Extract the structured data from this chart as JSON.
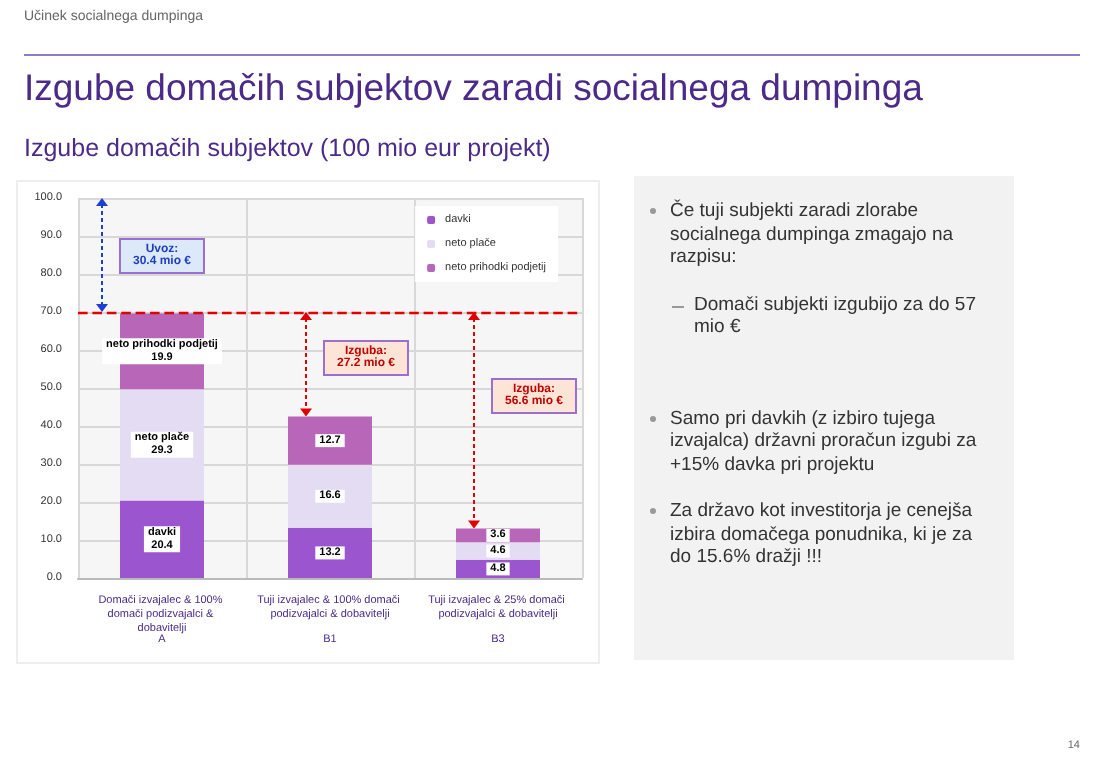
{
  "chart_data": [
    {
      "type": "bar",
      "title": "Izgube domačih subjektov zaradi socialnega dumpinga",
      "subtitle": "Izgube domačih subjektov (100 mio eur projekt)",
      "categories": [
        "Domači izvajalec & 100% domači podizvajalci & dobavitelji",
        "Tuji izvajalec & 100% domači podizvajalci & dobavitelji",
        "Tuji izvajalec & 25% domači podizvajalci & dobavitelji"
      ],
      "series": [
        {
          "name": "davki",
          "color": "#9b55cf",
          "values": [
            20.4,
            13.2,
            4.8
          ],
          "value_labels": [
            "davki\n20.4",
            "13.2",
            "4.8"
          ]
        },
        {
          "name": "neto plače",
          "color": "#e3dcf3",
          "values": [
            29.3,
            16.6,
            4.6
          ],
          "value_labels": [
            "neto plače\n29.3",
            "16.6",
            "4.6"
          ]
        },
        {
          "name": "neto prihodki podjetij",
          "color": "#b866b8",
          "values": [
            19.9,
            12.7,
            3.6
          ],
          "value_labels": [
            "neto prihodki podjetij\n19.9",
            "12.7",
            "3.6"
          ]
        }
      ],
      "stacked": true,
      "ylim": [
        0,
        100
      ],
      "yticks": [
        {
          "value": 0,
          "label": "0.0"
        },
        {
          "value": 10,
          "label": "10.0"
        },
        {
          "value": 20,
          "label": "20.0"
        },
        {
          "value": 30,
          "label": "30.0"
        },
        {
          "value": 40,
          "label": "40.0"
        },
        {
          "value": 50,
          "label": "50.0"
        },
        {
          "value": 60,
          "label": "60.0"
        },
        {
          "value": 70,
          "label": "70.0"
        },
        {
          "value": 80,
          "label": "80.0"
        },
        {
          "value": 90,
          "label": "90.0"
        },
        {
          "value": 100,
          "label": "100.0"
        }
      ],
      "ref_lines": [
        {
          "axis": "y",
          "value": 70,
          "color": "#e00000",
          "line_style": "dashed"
        }
      ],
      "annotations": [
        "Uvoz:\n30.4 mio €",
        "Izguba:\n27.2 mio €",
        "Izguba:\n56.6 mio €",
        "A",
        "B1",
        "B3",
        "Učinek socialnega dumpinga",
        "14"
      ],
      "grid": true,
      "legend": "top right"
    },
    {
      "type": "other",
      "annotations": [
        "Če tuji subjekti zaradi zlorabe socialnega dumpinga zmagajo na razpisu:",
        "Domači subjekti izgubijo za do 57 mio €",
        "Samo pri davkih (z izbiro tujega izvajalca) državni proračun izgubi za +15% davka pri projektu",
        "Za državo kot investitorja je cenejša izbira domačega ponudnika, ki je za do 15.6% dražji !!!"
      ]
    }
  ]
}
